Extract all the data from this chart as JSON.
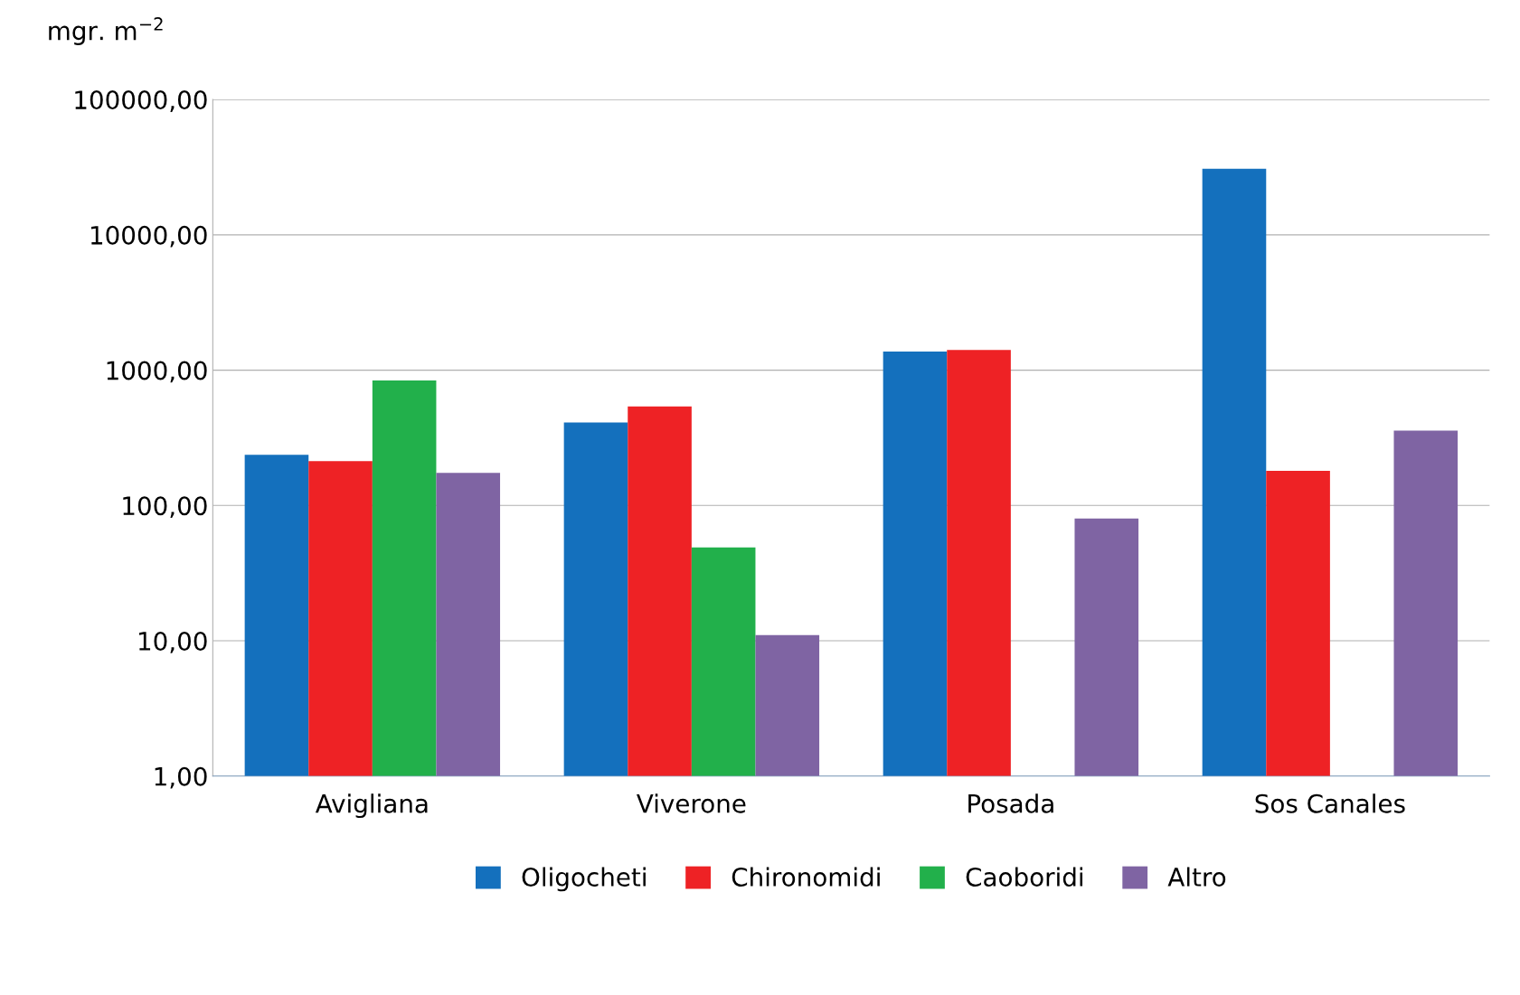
{
  "chart_data": {
    "type": "bar",
    "ylabel": "mgr. m$^{−2}$",
    "categories": [
      "Avigliana",
      "Viverone",
      "Posada",
      "Sos Canales"
    ],
    "series": [
      {
        "name": "Oligocheti",
        "color": "#1470bd",
        "values": [
          237,
          410,
          1370,
          30800
        ]
      },
      {
        "name": "Chironomidi",
        "color": "#ee2225",
        "values": [
          213,
          540,
          1410,
          180
        ]
      },
      {
        "name": "Caoboridi",
        "color": "#22b04b",
        "values": [
          840,
          49,
          null,
          null
        ]
      },
      {
        "name": "Altro",
        "color": "#7f64a3",
        "values": [
          174,
          11,
          80,
          357
        ]
      }
    ],
    "log": "y",
    "ylim": [
      1,
      100000
    ],
    "yticks": [
      {
        "value": 1,
        "label": "1,00"
      },
      {
        "value": 10,
        "label": "10,00"
      },
      {
        "value": 100,
        "label": "100,00"
      },
      {
        "value": 1000,
        "label": "1000,00"
      },
      {
        "value": 10000,
        "label": "10000,00"
      },
      {
        "value": 100000,
        "label": "100000,00"
      }
    ],
    "grid": "y",
    "legend": "bottom"
  }
}
